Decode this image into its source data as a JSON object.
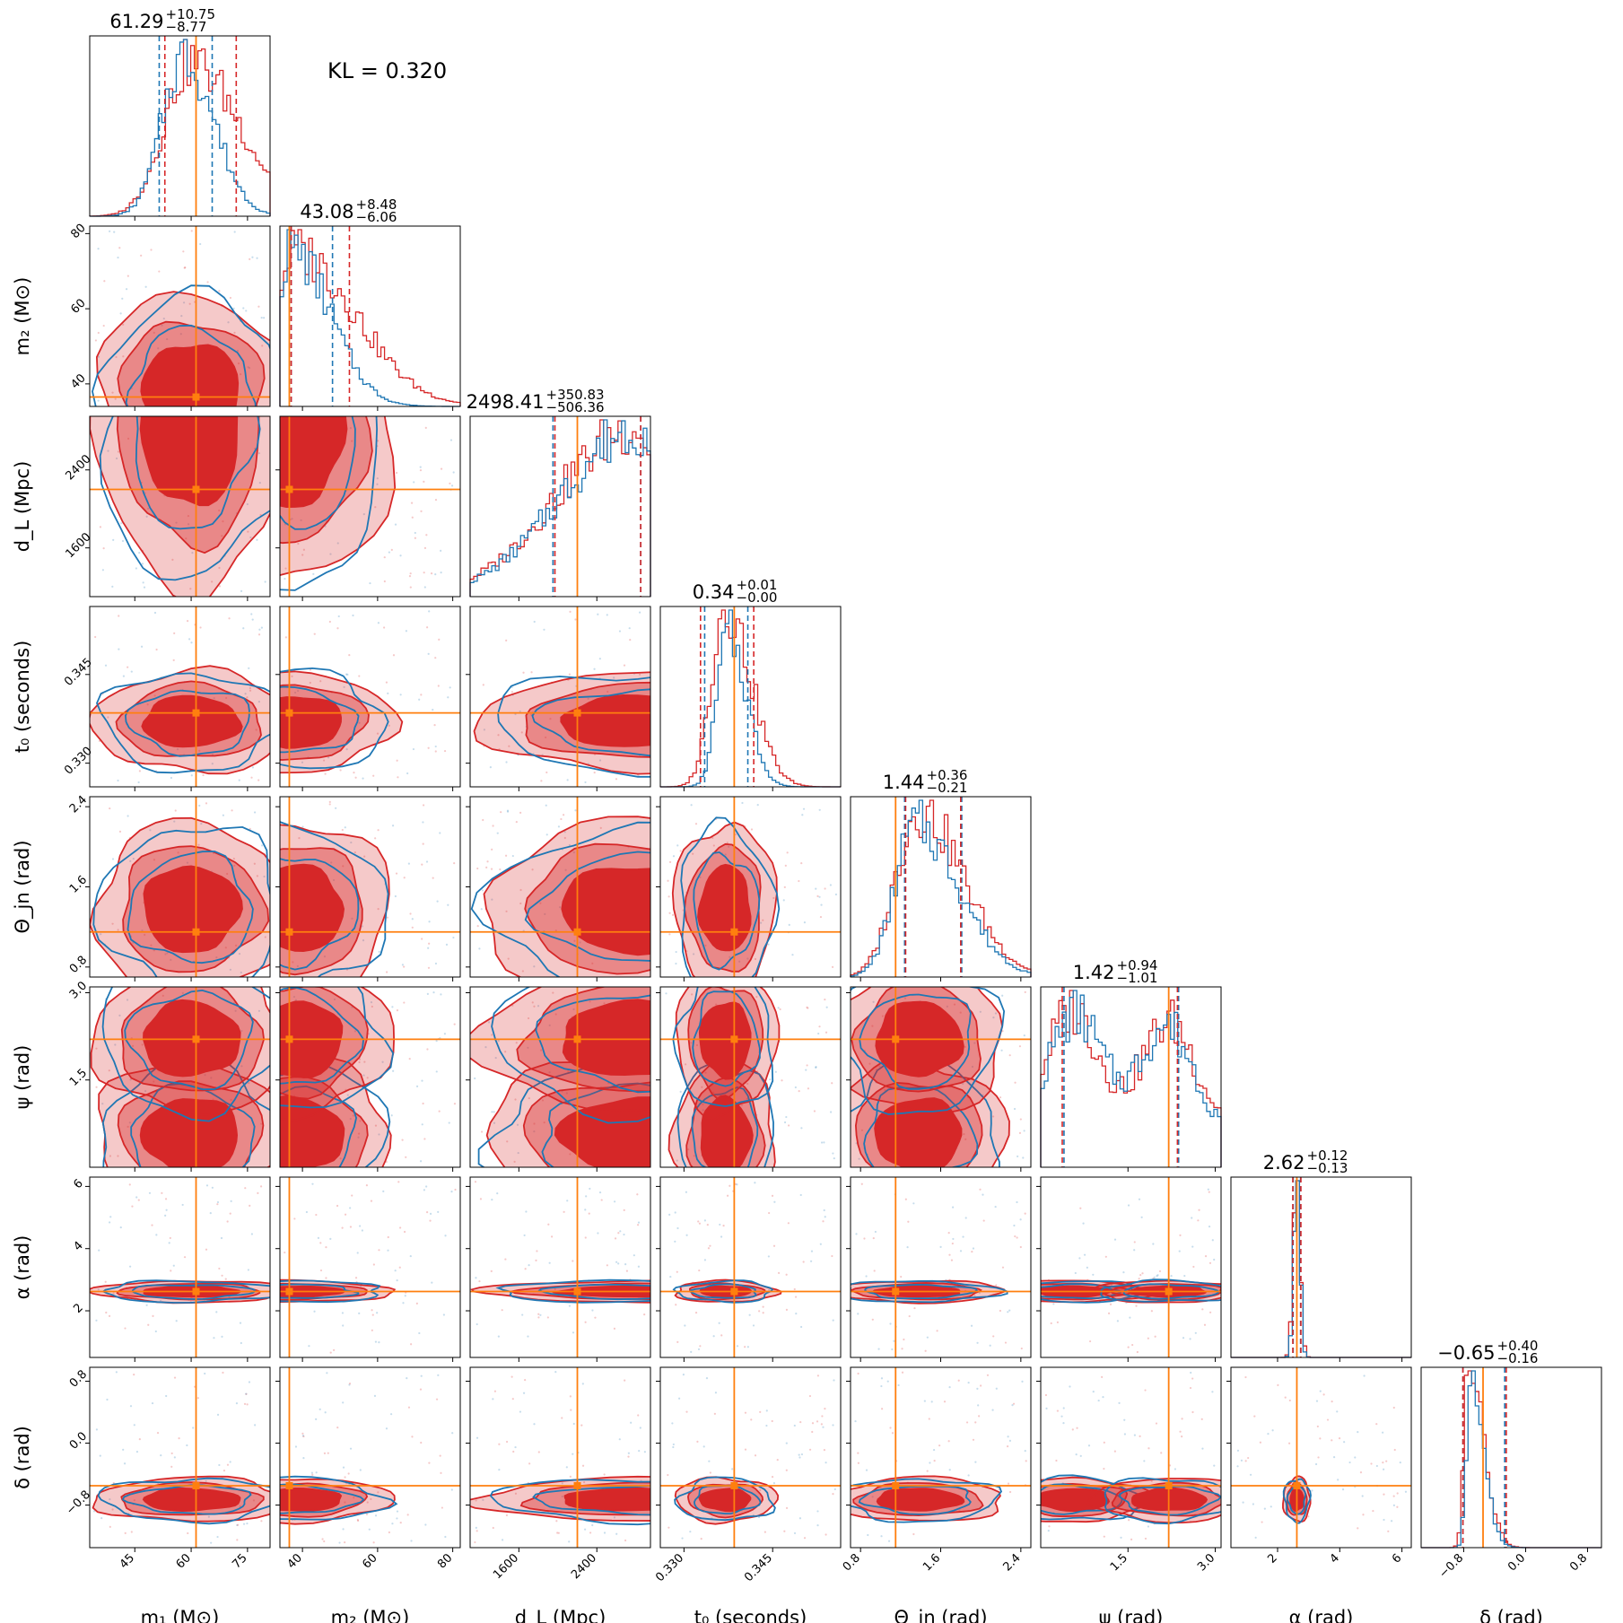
{
  "figure": {
    "kl_text": "KL = 0.320",
    "colors": {
      "model": "#1f77b4",
      "reference": "#d62728",
      "truth": "#ff7f0e"
    }
  },
  "chart_data": {
    "type": "corner",
    "kl_divergence": 0.32,
    "series": [
      {
        "name": "",
        "color": "#1f77b4",
        "style": "step histogram + contour lines"
      },
      {
        "name": "",
        "color": "#d62728",
        "style": "step histogram + filled contours"
      }
    ],
    "parameters": [
      {
        "key": "m1",
        "label": "m₁ (M⊙)",
        "range": [
          33,
          81
        ],
        "ticks": [
          45,
          60,
          75
        ],
        "tick_labels": [
          "45",
          "60",
          "75"
        ],
        "truth": 61.3,
        "summary": {
          "median": "61.29",
          "plus": "+10.75",
          "minus": "−8.77"
        },
        "quantiles_blue": [
          51.5,
          65.6
        ],
        "quantiles_red": [
          53.0,
          72.0
        ],
        "hist_blue": {
          "center": 58,
          "width": 6.5,
          "skew": 0.4
        },
        "hist_red": {
          "center": 60,
          "width": 9,
          "skew": 0.7
        }
      },
      {
        "key": "m2",
        "label": "m₂ (M⊙)",
        "range": [
          34,
          82
        ],
        "ticks": [
          40,
          60,
          80
        ],
        "tick_labels": [
          "40",
          "60",
          "80"
        ],
        "truth": 36.5,
        "summary": {
          "median": "43.08",
          "plus": "+8.48",
          "minus": "−6.06"
        },
        "quantiles_blue": [
          37.0,
          48.0
        ],
        "quantiles_red": [
          37.0,
          52.5
        ],
        "hist_blue": {
          "center": 37,
          "width": 6,
          "skew": 1.2
        },
        "hist_red": {
          "center": 38,
          "width": 9,
          "skew": 1.3
        }
      },
      {
        "key": "dL",
        "label": "d_L (Mpc)",
        "range": [
          1100,
          2950
        ],
        "ticks": [
          1600,
          2400
        ],
        "tick_labels": [
          "1600",
          "2400"
        ],
        "truth": 2200,
        "summary": {
          "median": "2498.41",
          "plus": "+350.83",
          "minus": "−506.36"
        },
        "quantiles_blue": [
          1950,
          2850
        ],
        "quantiles_red": [
          1970,
          2850
        ],
        "hist_blue": {
          "center": 2850,
          "width": 550,
          "skew": -1.5
        },
        "hist_red": {
          "center": 2820,
          "width": 560,
          "skew": -1.5
        }
      },
      {
        "key": "t0",
        "label": "t₀ (seconds)",
        "range": [
          0.326,
          0.3565
        ],
        "ticks": [
          0.33,
          0.345
        ],
        "tick_labels": [
          "0.330",
          "0.345"
        ],
        "truth": 0.3385,
        "summary": {
          "median": "0.34",
          "plus": "+0.01",
          "minus": "−0.00"
        },
        "quantiles_blue": [
          0.3335,
          0.3408
        ],
        "quantiles_red": [
          0.3328,
          0.3418
        ],
        "hist_blue": {
          "center": 0.3375,
          "width": 0.0023,
          "skew": 0.6
        },
        "hist_red": {
          "center": 0.337,
          "width": 0.003,
          "skew": 0.7
        }
      },
      {
        "key": "theta_jn",
        "label": "Θ_jn (rad)",
        "range": [
          0.7,
          2.5
        ],
        "ticks": [
          0.8,
          1.6,
          2.4
        ],
        "tick_labels": [
          "0.8",
          "1.6",
          "2.4"
        ],
        "truth": 1.15,
        "summary": {
          "median": "1.44",
          "plus": "+0.36",
          "minus": "−0.21"
        },
        "quantiles_blue": [
          1.24,
          1.81
        ],
        "quantiles_red": [
          1.25,
          1.8
        ],
        "hist_blue": {
          "center": 1.35,
          "width": 0.28,
          "skew": 0.9
        },
        "hist_red": {
          "center": 1.38,
          "width": 0.3,
          "skew": 0.8
        }
      },
      {
        "key": "psi",
        "label": "ψ (rad)",
        "range": [
          0.0,
          3.1
        ],
        "ticks": [
          1.5,
          3.0
        ],
        "tick_labels": [
          "1.5",
          "3.0"
        ],
        "truth": 2.2,
        "summary": {
          "median": "1.42",
          "plus": "+0.94",
          "minus": "−1.01"
        },
        "quantiles_blue": [
          0.4,
          2.37
        ],
        "quantiles_red": [
          0.37,
          2.35
        ],
        "hist_blue": {
          "bimodal": [
            0.6,
            2.15
          ],
          "width": 0.45
        },
        "hist_red": {
          "bimodal": [
            0.55,
            2.2
          ],
          "width": 0.45
        }
      },
      {
        "key": "alpha",
        "label": "α (rad)",
        "range": [
          0.5,
          6.3
        ],
        "ticks": [
          2,
          4,
          6
        ],
        "tick_labels": [
          "2",
          "4",
          "6"
        ],
        "truth": 2.62,
        "summary": {
          "median": "2.62",
          "plus": "+0.12",
          "minus": "−0.13"
        },
        "quantiles_blue": [
          2.5,
          2.74
        ],
        "quantiles_red": [
          2.49,
          2.75
        ],
        "hist_blue": {
          "center": 2.62,
          "width": 0.1,
          "skew": 0
        },
        "hist_red": {
          "center": 2.62,
          "width": 0.11,
          "skew": 0
        }
      },
      {
        "key": "delta",
        "label": "δ (rad)",
        "range": [
          -1.35,
          0.98
        ],
        "ticks": [
          -0.8,
          0.0,
          0.8
        ],
        "tick_labels": [
          "−0.8",
          "0.0",
          "0.8"
        ],
        "truth": -0.55,
        "summary": {
          "median": "−0.65",
          "plus": "+0.40",
          "minus": "−0.16"
        },
        "quantiles_blue": [
          -0.81,
          -0.27
        ],
        "quantiles_red": [
          -0.81,
          -0.25
        ],
        "hist_blue": {
          "center": -0.72,
          "width": 0.09,
          "skew": 1.5
        },
        "hist_red": {
          "center": -0.73,
          "width": 0.1,
          "skew": 1.4
        }
      }
    ]
  }
}
